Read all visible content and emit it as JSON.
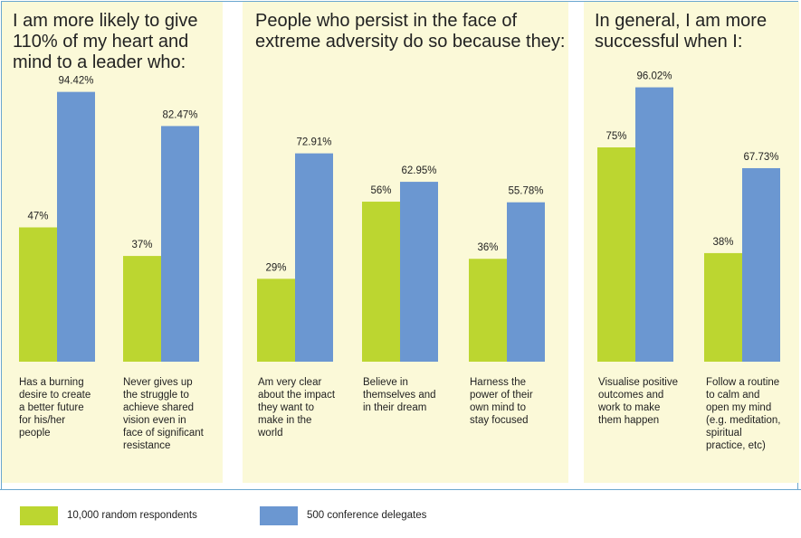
{
  "chart_data": [
    {
      "type": "bar",
      "title": "I am more likely to give\n110% of my heart and\nmind to a leader who:",
      "categories": [
        "Has a burning\ndesire to create\na better future\nfor his/her\npeople",
        "Never gives up\nthe struggle to\nachieve shared\nvision even in\nface of significant\nresistance"
      ],
      "series": [
        {
          "name": "10,000 random respondents",
          "values": [
            47,
            37
          ],
          "labels": [
            "47%",
            "37%"
          ]
        },
        {
          "name": "500 conference delegates",
          "values": [
            94.42,
            82.47
          ],
          "labels": [
            "94.42%",
            "82.47%"
          ]
        }
      ],
      "ylim": [
        0,
        100
      ]
    },
    {
      "type": "bar",
      "title": "People who persist in the face of\nextreme adversity do so because they:",
      "categories": [
        "Am very clear\nabout the impact\nthey want to\nmake in the\nworld",
        "Believe in\nthemselves and\nin their dream",
        "Harness the\npower of their\nown mind to\nstay focused"
      ],
      "series": [
        {
          "name": "10,000 random respondents",
          "values": [
            29,
            56,
            36
          ],
          "labels": [
            "29%",
            "56%",
            "36%"
          ]
        },
        {
          "name": "500 conference delegates",
          "values": [
            72.91,
            62.95,
            55.78
          ],
          "labels": [
            "72.91%",
            "62.95%",
            "55.78%"
          ]
        }
      ],
      "ylim": [
        0,
        100
      ]
    },
    {
      "type": "bar",
      "title": "In general, I am more\nsuccessful when I:",
      "categories": [
        "Visualise positive\noutcomes and\nwork to make\nthem happen",
        "Follow a routine\nto calm and\nopen my mind\n(e.g. meditation,\nspiritual\npractice, etc)"
      ],
      "series": [
        {
          "name": "10,000 random respondents",
          "values": [
            75,
            38
          ],
          "labels": [
            "75%",
            "38%"
          ]
        },
        {
          "name": "500 conference delegates",
          "values": [
            96.02,
            67.73
          ],
          "labels": [
            "96.02%",
            "67.73%"
          ]
        }
      ],
      "ylim": [
        0,
        100
      ]
    }
  ],
  "legend": [
    {
      "label": "10,000 random respondents",
      "color": "#bcd630"
    },
    {
      "label": "500 conference delegates",
      "color": "#6b97d1"
    }
  ]
}
